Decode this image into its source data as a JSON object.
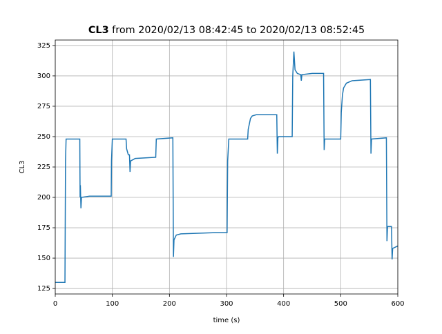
{
  "chart_data": {
    "type": "line",
    "title": {
      "bold": "CL3",
      "rest": "from 2020/02/13 08:42:45 to 2020/02/13 08:52:45"
    },
    "xlabel": "time (s)",
    "ylabel": "CL3",
    "xlim": [
      0,
      600
    ],
    "ylim": [
      120.5,
      329.5
    ],
    "xticks": [
      0,
      100,
      200,
      300,
      400,
      500,
      600
    ],
    "yticks": [
      125,
      150,
      175,
      200,
      225,
      250,
      275,
      300,
      325
    ],
    "grid": true,
    "series": [
      {
        "name": "CL3",
        "color": "#1f77b4",
        "x": [
          0,
          17,
          18,
          19,
          43,
          43.5,
          44,
          45,
          46,
          60,
          98,
          98.5,
          100,
          124,
          125,
          128,
          130,
          131,
          132,
          140,
          176,
          177,
          206,
          207,
          208,
          212,
          220,
          280,
          301,
          302,
          304,
          337,
          338,
          342,
          345,
          352,
          388,
          389,
          390,
          391,
          415,
          416,
          418,
          420,
          424,
          430,
          431,
          432,
          450,
          470,
          471,
          472,
          500,
          501,
          503,
          505,
          510,
          520,
          552,
          553,
          554,
          580,
          581,
          582,
          589,
          590,
          591,
          600
        ],
        "values": [
          130,
          130,
          230,
          248,
          248,
          200,
          210,
          191,
          200,
          201,
          201,
          230,
          248,
          248,
          240,
          235,
          235,
          221,
          230,
          232,
          233,
          248,
          249,
          151,
          165,
          169,
          170,
          171,
          171,
          230,
          248,
          248,
          256,
          265,
          267,
          268,
          268,
          236,
          249,
          250,
          250,
          300,
          320,
          305,
          302,
          301,
          296,
          301,
          302,
          302,
          239,
          248,
          248,
          270,
          284,
          290,
          294,
          296,
          297,
          236,
          248,
          249,
          164,
          176,
          176,
          149,
          158,
          160
        ]
      }
    ]
  }
}
